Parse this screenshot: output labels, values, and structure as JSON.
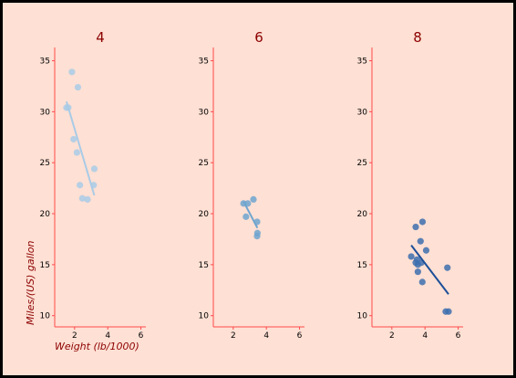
{
  "colors": {
    "background": "#ffe0d4",
    "border": "#000000",
    "axis": "#ff4a4a",
    "title": "#8b0000"
  },
  "chart_data": {
    "type": "scatter",
    "xlabel": "Weight (lb/1000)",
    "ylabel": "Miles/(US) gallon",
    "xlim": [
      0.8,
      6.3
    ],
    "ylim": [
      8.9,
      36.3
    ],
    "xticks": [
      "2",
      "4",
      "6"
    ],
    "yticks": [
      "10",
      "15",
      "20",
      "25",
      "30",
      "35"
    ],
    "grid": false,
    "panels": [
      {
        "title": "4",
        "color": "#a9cbe6",
        "points": [
          {
            "x": 2.32,
            "y": 22.8
          },
          {
            "x": 3.19,
            "y": 24.4
          },
          {
            "x": 3.15,
            "y": 22.8
          },
          {
            "x": 2.2,
            "y": 32.4
          },
          {
            "x": 1.84,
            "y": 33.9
          },
          {
            "x": 2.47,
            "y": 21.5
          },
          {
            "x": 1.94,
            "y": 27.3
          },
          {
            "x": 1.51,
            "y": 30.4
          },
          {
            "x": 2.14,
            "y": 26.0
          },
          {
            "x": 1.62,
            "y": 30.4
          },
          {
            "x": 2.78,
            "y": 21.4
          }
        ],
        "trend": [
          {
            "x": 1.51,
            "y": 31.0
          },
          {
            "x": 3.19,
            "y": 21.8
          }
        ]
      },
      {
        "title": "6",
        "color": "#6fa5cf",
        "points": [
          {
            "x": 2.62,
            "y": 21.0
          },
          {
            "x": 2.88,
            "y": 21.0
          },
          {
            "x": 3.22,
            "y": 21.4
          },
          {
            "x": 3.46,
            "y": 18.1
          },
          {
            "x": 3.44,
            "y": 19.2
          },
          {
            "x": 3.44,
            "y": 17.8
          },
          {
            "x": 2.77,
            "y": 19.7
          }
        ],
        "trend": [
          {
            "x": 2.62,
            "y": 21.2
          },
          {
            "x": 3.46,
            "y": 18.6
          }
        ]
      },
      {
        "title": "8",
        "color": "#3d6fae",
        "trend_color": "#1c4f99",
        "points": [
          {
            "x": 3.44,
            "y": 18.7
          },
          {
            "x": 3.57,
            "y": 14.3
          },
          {
            "x": 4.07,
            "y": 16.4
          },
          {
            "x": 3.73,
            "y": 17.3
          },
          {
            "x": 3.78,
            "y": 15.2
          },
          {
            "x": 5.25,
            "y": 10.4
          },
          {
            "x": 5.42,
            "y": 10.4
          },
          {
            "x": 5.35,
            "y": 14.7
          },
          {
            "x": 3.52,
            "y": 15.5
          },
          {
            "x": 3.44,
            "y": 15.2
          },
          {
            "x": 3.84,
            "y": 13.3
          },
          {
            "x": 3.85,
            "y": 19.2
          },
          {
            "x": 3.17,
            "y": 15.8
          },
          {
            "x": 3.57,
            "y": 15.0
          }
        ],
        "trend": [
          {
            "x": 3.17,
            "y": 16.9
          },
          {
            "x": 5.42,
            "y": 12.1
          }
        ]
      }
    ]
  }
}
